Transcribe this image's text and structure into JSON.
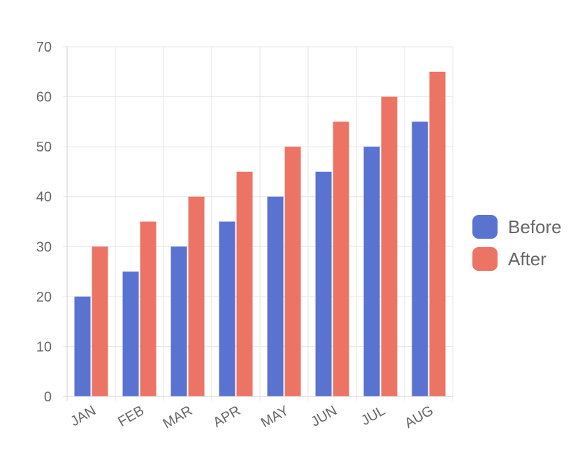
{
  "chart_data": {
    "type": "bar",
    "title": "",
    "xlabel": "",
    "ylabel": "",
    "categories": [
      "JAN",
      "FEB",
      "MAR",
      "APR",
      "MAY",
      "JUN",
      "JUL",
      "AUG"
    ],
    "series": [
      {
        "name": "Before",
        "color": "#5a72d0",
        "values": [
          20,
          25,
          30,
          35,
          40,
          45,
          50,
          55
        ]
      },
      {
        "name": "After",
        "color": "#ec7465",
        "values": [
          30,
          35,
          40,
          45,
          50,
          55,
          60,
          65
        ]
      }
    ],
    "ylim": [
      0,
      70
    ],
    "yticks": [
      0,
      10,
      20,
      30,
      40,
      50,
      60,
      70
    ],
    "grid": true,
    "legend_position": "right"
  }
}
